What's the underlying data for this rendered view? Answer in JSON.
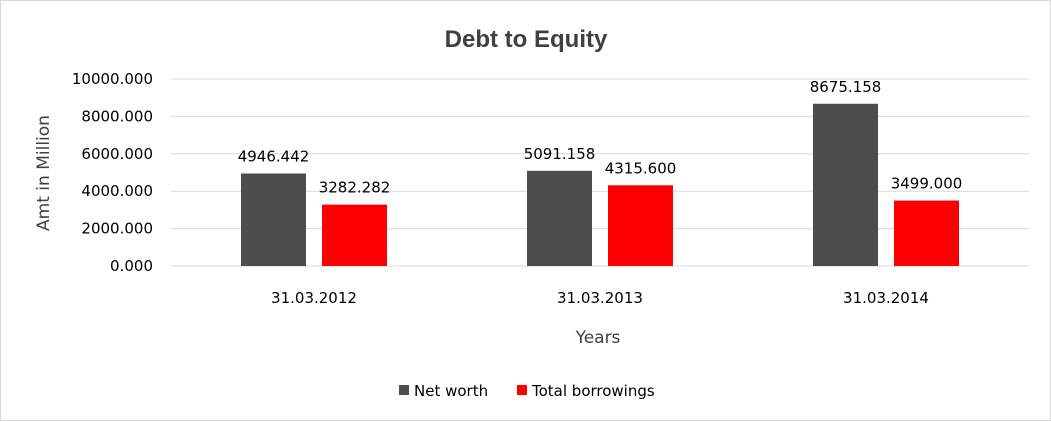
{
  "chart_data": {
    "type": "bar",
    "title": "Debt to Equity",
    "xlabel": "Years",
    "ylabel": "Amt in Million",
    "categories": [
      "31.03.2012",
      "31.03.2013",
      "31.03.2014"
    ],
    "series": [
      {
        "name": "Net worth",
        "values": [
          4946.442,
          5091.158,
          8675.158
        ],
        "color": "#4d4d4d"
      },
      {
        "name": "Total borrowings",
        "values": [
          3282.282,
          4315.6,
          3499.0
        ],
        "color": "#ff0000"
      }
    ],
    "ylim": [
      0,
      10000
    ],
    "yticks": [
      "0.000",
      "2000.000",
      "4000.000",
      "6000.000",
      "8000.000",
      "10000.000"
    ],
    "data_labels": [
      [
        "4946.442",
        "5091.158",
        "8675.158"
      ],
      [
        "3282.282",
        "4315.600",
        "3499.000"
      ]
    ],
    "grid": true,
    "legend": "bottom"
  }
}
